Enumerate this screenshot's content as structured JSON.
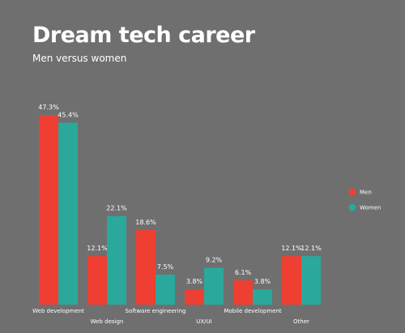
{
  "colors": {
    "men": "#ef3f33",
    "women": "#2aa89b",
    "background": "#6f6f6f"
  },
  "chart_data": {
    "type": "bar",
    "title": "Dream tech career",
    "subtitle": "Men versus women",
    "categories": [
      "Web development",
      "Web design",
      "Software engineering",
      "UX/UI",
      "Mobile development",
      "Other"
    ],
    "series": [
      {
        "name": "Men",
        "values": [
          47.3,
          12.1,
          18.6,
          3.8,
          6.1,
          12.1
        ],
        "labels": [
          "47.3%",
          "12.1%",
          "18.6%",
          "3.8%",
          "6.1%",
          "12.1%"
        ]
      },
      {
        "name": "Women",
        "values": [
          45.4,
          22.1,
          7.5,
          9.2,
          3.8,
          12.1
        ],
        "labels": [
          "45.4%",
          "22.1%",
          "7.5%",
          "9.2%",
          "3.8%",
          "12.1%"
        ]
      }
    ],
    "ylim": [
      0,
      47.3
    ],
    "grid": false,
    "legend": "right"
  }
}
